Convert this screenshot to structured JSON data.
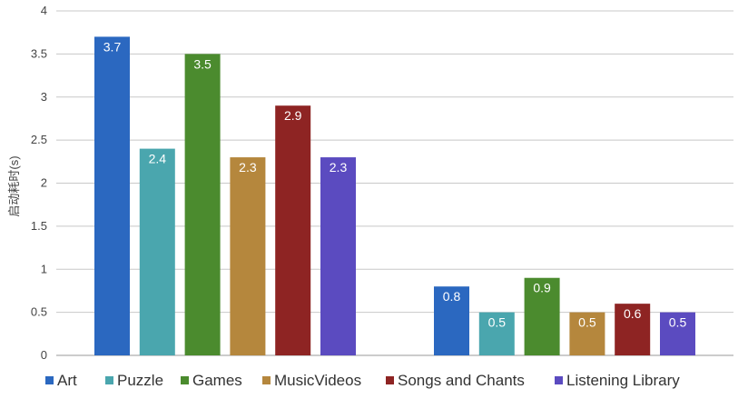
{
  "chart_data": {
    "type": "bar",
    "ylabel": "启动耗时(s)",
    "ylim": [
      0,
      4
    ],
    "yticks": [
      "0",
      "0.5",
      "1",
      "1.5",
      "2",
      "2.5",
      "3",
      "3.5",
      "4"
    ],
    "grid": true,
    "legend_position": "bottom",
    "groups": 2,
    "series": [
      {
        "name": "Art",
        "color": "#2B68C0",
        "values": [
          3.7,
          0.8
        ]
      },
      {
        "name": "Puzzle",
        "color": "#4AA6AE",
        "values": [
          2.4,
          0.5
        ]
      },
      {
        "name": "Games",
        "color": "#4B8B2E",
        "values": [
          3.5,
          0.9
        ]
      },
      {
        "name": "MusicVideos",
        "color": "#B5873D",
        "values": [
          2.3,
          0.5
        ]
      },
      {
        "name": "Songs and Chants",
        "color": "#8E2423",
        "values": [
          2.9,
          0.6
        ]
      },
      {
        "name": "Listening Library",
        "color": "#5B4BC0",
        "values": [
          2.3,
          0.5
        ]
      }
    ]
  }
}
